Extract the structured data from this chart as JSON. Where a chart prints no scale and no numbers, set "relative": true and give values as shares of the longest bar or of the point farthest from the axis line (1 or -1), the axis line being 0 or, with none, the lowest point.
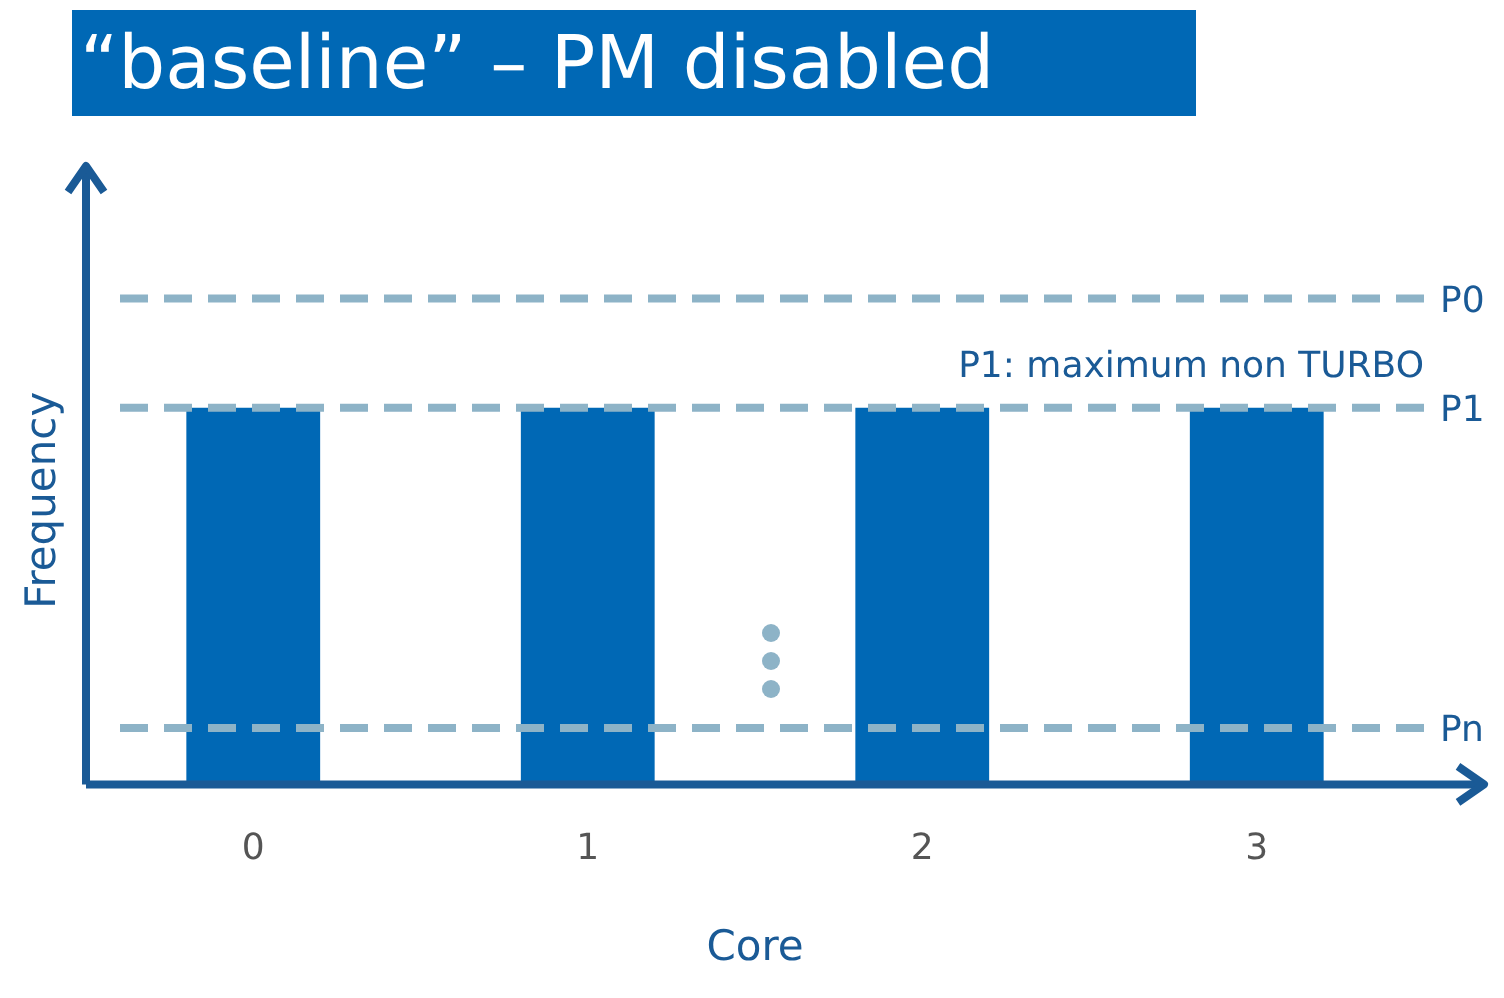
{
  "chart_data": {
    "type": "bar",
    "title": "“baseline” – PM disabled",
    "xlabel": "Core",
    "ylabel": "Frequency",
    "categories": [
      "0",
      "1",
      "2",
      "3"
    ],
    "values": [
      1,
      1,
      1,
      1
    ],
    "color": "#0068b5",
    "relative": true,
    "ref_lines": [
      {
        "axis": "y",
        "value": 1.29,
        "label": "P0",
        "color": "#8db3c7",
        "line_style": "dashed"
      },
      {
        "axis": "y",
        "value": 1,
        "label": "P1",
        "color": "#8db3c7",
        "line_style": "dashed"
      },
      {
        "axis": "y",
        "value": 0.15,
        "label": "Pn",
        "color": "#8db3c7",
        "line_style": "dashed"
      }
    ],
    "annotations": [
      {
        "text": "P1: maximum non TURBO",
        "y": 1
      }
    ]
  }
}
